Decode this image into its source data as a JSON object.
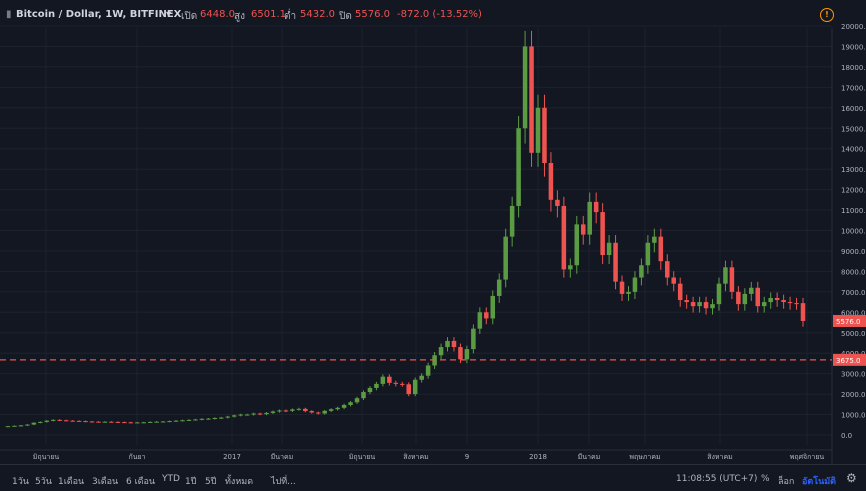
{
  "header": {
    "symbol": "Bitcoin / Dollar, 1W, BITFINEX",
    "dropdown_glyph": "▾",
    "open_label": "เปิด",
    "open_value": "6448.0",
    "high_label": "สูง",
    "high_value": "6501.1",
    "low_label": "ต่ำ",
    "low_value": "5432.0",
    "close_label": "ปิด",
    "close_value": "5576.0",
    "change": "-872.0 (-13.52%)",
    "warning_glyph": "!"
  },
  "colors": {
    "up": "#5b9c43",
    "down": "#ef5350",
    "background": "#131722",
    "grid": "#1e222d",
    "support": "#ef5350"
  },
  "chart_data": {
    "type": "candlestick",
    "yticks": [
      0,
      1000,
      2000,
      3000,
      4000,
      5000,
      6000,
      7000,
      8000,
      9000,
      10000,
      11000,
      12000,
      13000,
      14000,
      15000,
      16000,
      17000,
      18000,
      19000,
      20000
    ],
    "ylim": [
      -500,
      20500
    ],
    "current_price_label": "5576.0",
    "support_label": "3675.0",
    "support_value": 3675,
    "xticks": [
      "มิถุนายน",
      "กันยา",
      "2017",
      "มีนาคม",
      "มิถุนายน",
      "สิงหาคม",
      "9",
      "2018",
      "มีนาคม",
      "พฤษภาคม",
      "สิงหาคม",
      "พฤศจิกายน"
    ],
    "closes": [
      430,
      450,
      470,
      510,
      600,
      640,
      700,
      740,
      720,
      700,
      690,
      680,
      660,
      650,
      640,
      650,
      640,
      630,
      620,
      610,
      615,
      620,
      640,
      650,
      660,
      680,
      700,
      720,
      740,
      760,
      790,
      800,
      830,
      850,
      900,
      960,
      1000,
      1000,
      1050,
      1020,
      1080,
      1150,
      1200,
      1180,
      1250,
      1280,
      1170,
      1100,
      1050,
      1180,
      1260,
      1330,
      1470,
      1600,
      1800,
      2100,
      2300,
      2500,
      2850,
      2550,
      2500,
      2480,
      2000,
      2700,
      2900,
      3400,
      3900,
      4300,
      4600,
      4300,
      3700,
      4200,
      5200,
      6000,
      5700,
      6800,
      7600,
      9700,
      11200,
      15000,
      19000,
      13800,
      16000,
      13300,
      11500,
      11200,
      8100,
      8300,
      10300,
      9800,
      11400,
      10900,
      8800,
      9400,
      7500,
      6900,
      7000,
      7700,
      8300,
      9400,
      9700,
      8500,
      7700,
      7400,
      6600,
      6500,
      6300,
      6500,
      6200,
      6400,
      7400,
      8200,
      7000,
      6400,
      6900,
      7200,
      6300,
      6500,
      6700,
      6600,
      6500,
      6450,
      6448,
      5576
    ]
  },
  "toolbar": {
    "ranges": [
      "1วัน",
      "5วัน",
      "1เดือน",
      "3เดือน",
      "6 เดือน",
      "YTD",
      "1ปี",
      "5ปี",
      "ทั้งหมด"
    ],
    "goto": "ไปที่...",
    "time": "11:08:55 (UTC+7)",
    "percent": "%",
    "log": "ล็อก",
    "auto": "อัตโนมัติ"
  }
}
